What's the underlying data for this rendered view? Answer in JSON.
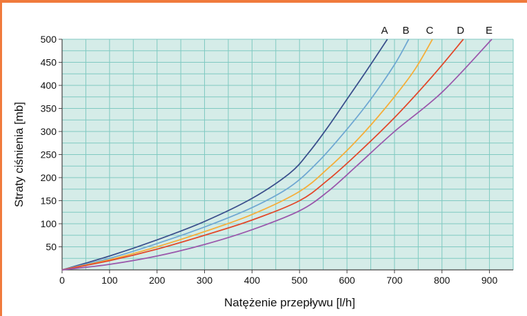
{
  "colors": {
    "frame": "#f07a3c",
    "plot_background": "#d5ece8",
    "grid": "#7fc9c1",
    "axis": "#444444"
  },
  "chart_data": {
    "type": "line",
    "title": "",
    "xlabel": "Natężenie przepływu [l/h]",
    "ylabel": "Straty ciśnienia [mb]",
    "xlim": [
      0,
      950
    ],
    "ylim": [
      0,
      500
    ],
    "x_ticks": [
      0,
      100,
      200,
      300,
      400,
      500,
      600,
      700,
      800,
      900
    ],
    "y_ticks": [
      50,
      100,
      150,
      200,
      250,
      300,
      350,
      400,
      450,
      500
    ],
    "x_minor_step": 50,
    "y_minor_step": 25,
    "grid": true,
    "series": [
      {
        "name": "A",
        "color": "#3b4f8c",
        "x": [
          0,
          100,
          200,
          300,
          400,
          480,
          520,
          560,
          600,
          640,
          685
        ],
        "y": [
          0,
          30,
          65,
          105,
          155,
          210,
          255,
          310,
          370,
          430,
          500
        ]
      },
      {
        "name": "B",
        "color": "#6fa7d2",
        "x": [
          0,
          100,
          200,
          300,
          400,
          480,
          540,
          600,
          650,
          700,
          730
        ],
        "y": [
          0,
          25,
          57,
          93,
          135,
          180,
          235,
          305,
          370,
          445,
          500
        ]
      },
      {
        "name": "C",
        "color": "#f5ae3a",
        "x": [
          0,
          100,
          200,
          300,
          400,
          500,
          560,
          620,
          680,
          740,
          780
        ],
        "y": [
          0,
          22,
          50,
          83,
          120,
          170,
          220,
          280,
          350,
          430,
          500
        ]
      },
      {
        "name": "D",
        "color": "#e2482a",
        "x": [
          0,
          100,
          200,
          300,
          400,
          500,
          560,
          620,
          700,
          780,
          845
        ],
        "y": [
          0,
          20,
          45,
          75,
          108,
          150,
          195,
          250,
          330,
          420,
          500
        ]
      },
      {
        "name": "E",
        "color": "#9a57ab",
        "x": [
          0,
          100,
          200,
          300,
          400,
          500,
          560,
          620,
          700,
          800,
          905
        ],
        "y": [
          0,
          12,
          30,
          55,
          87,
          128,
          170,
          225,
          300,
          385,
          500
        ]
      }
    ]
  }
}
